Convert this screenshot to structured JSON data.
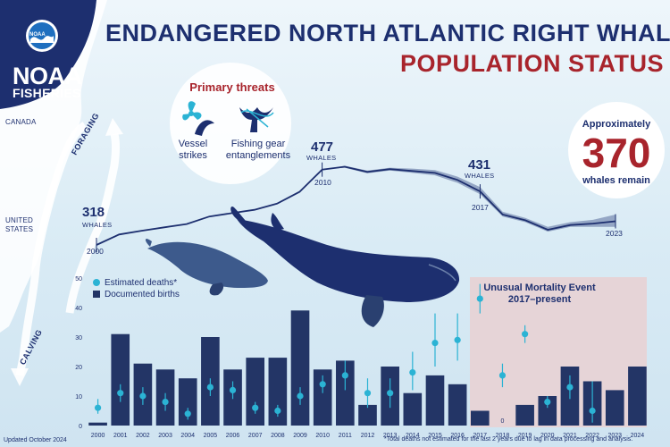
{
  "title": {
    "line1": "ENDANGERED NORTH ATLANTIC RIGHT WHALE",
    "line2": "POPULATION STATUS"
  },
  "logo": {
    "badge": "NOAA",
    "line1": "NOAA",
    "line2": "FISHERIES"
  },
  "map": {
    "canada": "CANADA",
    "united_states": "UNITED\nSTATES",
    "foraging": "FORAGING",
    "calving": "CALVING"
  },
  "threats": {
    "title": "Primary threats",
    "items": [
      {
        "icon": "vessel-propeller-icon",
        "label": "Vessel\nstrikes"
      },
      {
        "icon": "whale-tail-gear-icon",
        "label": "Fishing gear\nentanglements"
      }
    ]
  },
  "population_callout": {
    "prefix": "Approximately",
    "value": "370",
    "suffix": "whales remain"
  },
  "population_annotations": [
    {
      "year": "2000",
      "value": "318",
      "unit": "WHALES"
    },
    {
      "year": "2010",
      "value": "477",
      "unit": "WHALES"
    },
    {
      "year": "2017",
      "value": "431",
      "unit": "WHALES"
    },
    {
      "year": "2023"
    }
  ],
  "colors": {
    "navy": "#1d2f6f",
    "red": "#a8242c",
    "teal": "#2bb3d4",
    "bar": "#233566",
    "ume_band": "#e8d2d4"
  },
  "footer": {
    "updated": "Updated October 2024",
    "note": "*Total deaths not estimated for the last 2 years due to lag in data processing and analysis."
  },
  "chart_data": [
    {
      "type": "line",
      "x": [
        2000,
        2001,
        2002,
        2003,
        2004,
        2005,
        2006,
        2007,
        2008,
        2009,
        2010,
        2011,
        2012,
        2013,
        2014,
        2015,
        2016,
        2017,
        2018,
        2019,
        2020,
        2021,
        2022,
        2023
      ],
      "values": [
        318,
        340,
        348,
        355,
        362,
        378,
        385,
        392,
        405,
        430,
        477,
        483,
        472,
        478,
        474,
        470,
        455,
        431,
        382,
        370,
        350,
        360,
        363,
        368
      ],
      "range_upper": [
        318,
        340,
        348,
        355,
        362,
        378,
        385,
        392,
        405,
        430,
        477,
        485,
        475,
        481,
        479,
        476,
        462,
        440,
        388,
        375,
        356,
        366,
        371,
        382
      ],
      "range_lower": [
        318,
        340,
        348,
        355,
        362,
        378,
        385,
        392,
        405,
        430,
        477,
        481,
        469,
        475,
        470,
        465,
        449,
        425,
        378,
        366,
        346,
        356,
        356,
        356
      ],
      "ylim": [
        250,
        520
      ]
    },
    {
      "type": "bar",
      "categories": [
        "2000",
        "2001",
        "2002",
        "2003",
        "2004",
        "2005",
        "2006",
        "2007",
        "2008",
        "2009",
        "2010",
        "2011",
        "2012",
        "2013",
        "2014",
        "2015",
        "2016",
        "2017",
        "2018",
        "2019",
        "2020",
        "2021",
        "2022",
        "2023",
        "2024"
      ],
      "series": [
        {
          "name": "Documented births",
          "values": [
            1,
            31,
            21,
            19,
            16,
            30,
            19,
            23,
            23,
            39,
            19,
            22,
            7,
            20,
            11,
            17,
            14,
            5,
            0,
            7,
            10,
            20,
            15,
            12,
            20
          ]
        },
        {
          "name": "Estimated deaths*",
          "values": [
            6,
            11,
            10,
            8,
            4,
            13,
            12,
            6,
            5,
            10,
            14,
            17,
            11,
            11,
            18,
            28,
            29,
            43,
            17,
            31,
            8,
            13,
            5,
            null,
            null
          ],
          "ci_low": [
            4,
            8,
            7,
            5,
            2,
            10,
            9,
            4,
            3,
            7,
            11,
            12,
            6,
            6,
            12,
            20,
            22,
            38,
            13,
            28,
            6,
            9,
            1,
            null,
            null
          ],
          "ci_high": [
            9,
            14,
            13,
            11,
            6,
            16,
            15,
            8,
            7,
            13,
            17,
            22,
            16,
            16,
            25,
            38,
            38,
            48,
            21,
            34,
            10,
            17,
            15,
            null,
            null
          ]
        }
      ],
      "zero_label": {
        "category": "2018",
        "text": "0"
      },
      "yticks": [
        "0",
        "10",
        "20",
        "30",
        "40",
        "50"
      ],
      "ylim": [
        0,
        50
      ],
      "ume_band": {
        "label": "Unusual Mortality Event\n2017–present",
        "from": "2017",
        "to": "2024"
      }
    }
  ]
}
